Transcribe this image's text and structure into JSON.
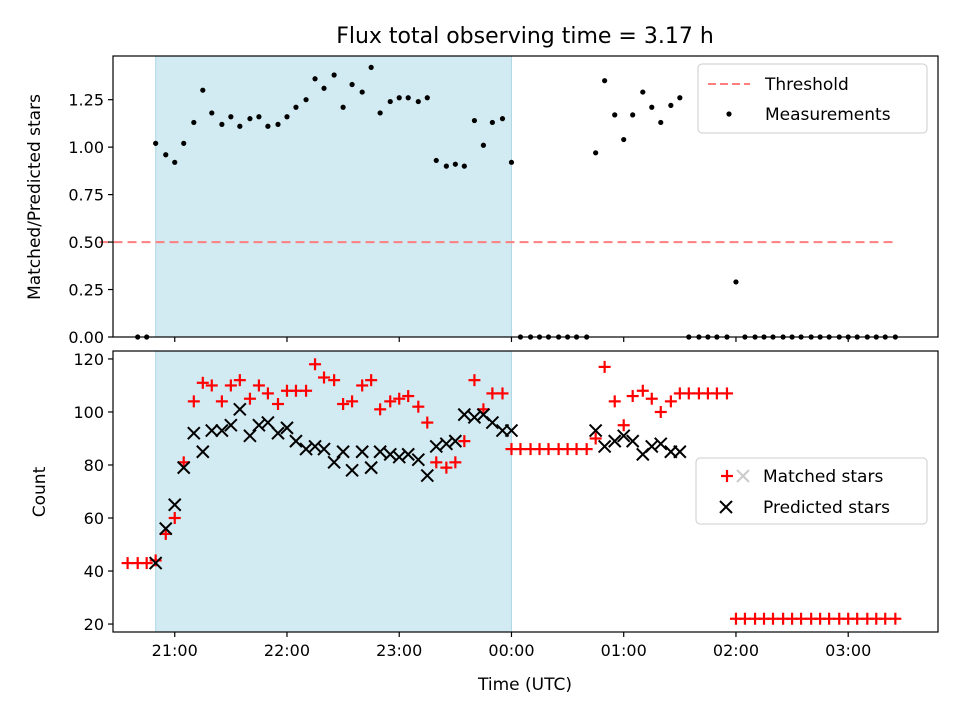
{
  "figure": {
    "title": "Flux total observing time = 3.17 h",
    "shade_color": "#add8e6"
  },
  "chart_data": [
    {
      "type": "scatter",
      "title": "Flux total observing time = 3.17 h",
      "xlabel": "",
      "ylabel": "Matched/Predicted stars",
      "x_unit": "hours since 00:00 UTC (day 1 = 0)",
      "xlim": [
        20.45,
        27.8
      ],
      "ylim": [
        0.0,
        1.48
      ],
      "yticks": [
        0.0,
        0.25,
        0.5,
        0.75,
        1.0,
        1.25
      ],
      "ytick_labels": [
        "0.00",
        "0.25",
        "0.50",
        "0.75",
        "1.00",
        "1.25"
      ],
      "xticks": [
        21,
        22,
        23,
        24,
        25,
        26,
        27
      ],
      "shaded_span": [
        20.83,
        24.0
      ],
      "legend_position": "top-right",
      "threshold": {
        "name": "Threshold",
        "y": 0.5,
        "x_range": [
          20.33,
          27.42
        ],
        "color": "#ff7f7f",
        "style": "dashed"
      },
      "series": [
        {
          "name": "Measurements",
          "color": "#000000",
          "marker": "dot",
          "points": [
            [
              20.67,
              0.0
            ],
            [
              20.75,
              0.0
            ],
            [
              20.83,
              1.02
            ],
            [
              20.92,
              0.96
            ],
            [
              21.0,
              0.92
            ],
            [
              21.08,
              1.02
            ],
            [
              21.17,
              1.13
            ],
            [
              21.25,
              1.3
            ],
            [
              21.33,
              1.18
            ],
            [
              21.42,
              1.12
            ],
            [
              21.5,
              1.16
            ],
            [
              21.58,
              1.11
            ],
            [
              21.67,
              1.15
            ],
            [
              21.75,
              1.16
            ],
            [
              21.83,
              1.11
            ],
            [
              21.92,
              1.12
            ],
            [
              22.0,
              1.16
            ],
            [
              22.08,
              1.21
            ],
            [
              22.17,
              1.25
            ],
            [
              22.25,
              1.36
            ],
            [
              22.33,
              1.31
            ],
            [
              22.42,
              1.38
            ],
            [
              22.5,
              1.21
            ],
            [
              22.58,
              1.33
            ],
            [
              22.67,
              1.29
            ],
            [
              22.75,
              1.42
            ],
            [
              22.83,
              1.18
            ],
            [
              22.92,
              1.24
            ],
            [
              23.0,
              1.26
            ],
            [
              23.08,
              1.26
            ],
            [
              23.17,
              1.24
            ],
            [
              23.25,
              1.26
            ],
            [
              23.33,
              0.93
            ],
            [
              23.42,
              0.9
            ],
            [
              23.5,
              0.91
            ],
            [
              23.58,
              0.9
            ],
            [
              23.67,
              1.14
            ],
            [
              23.75,
              1.01
            ],
            [
              23.83,
              1.13
            ],
            [
              23.92,
              1.15
            ],
            [
              24.0,
              0.92
            ],
            [
              24.08,
              0.0
            ],
            [
              24.17,
              0.0
            ],
            [
              24.25,
              0.0
            ],
            [
              24.33,
              0.0
            ],
            [
              24.42,
              0.0
            ],
            [
              24.5,
              0.0
            ],
            [
              24.58,
              0.0
            ],
            [
              24.67,
              0.0
            ],
            [
              24.75,
              0.97
            ],
            [
              24.83,
              1.35
            ],
            [
              24.92,
              1.17
            ],
            [
              25.0,
              1.04
            ],
            [
              25.08,
              1.17
            ],
            [
              25.17,
              1.29
            ],
            [
              25.25,
              1.21
            ],
            [
              25.33,
              1.13
            ],
            [
              25.42,
              1.22
            ],
            [
              25.5,
              1.26
            ],
            [
              25.58,
              0.0
            ],
            [
              25.67,
              0.0
            ],
            [
              25.75,
              0.0
            ],
            [
              25.83,
              0.0
            ],
            [
              25.92,
              0.0
            ],
            [
              26.0,
              0.29
            ],
            [
              26.08,
              0.0
            ],
            [
              26.17,
              0.0
            ],
            [
              26.25,
              0.0
            ],
            [
              26.33,
              0.0
            ],
            [
              26.42,
              0.0
            ],
            [
              26.5,
              0.0
            ],
            [
              26.58,
              0.0
            ],
            [
              26.67,
              0.0
            ],
            [
              26.75,
              0.0
            ],
            [
              26.83,
              0.0
            ],
            [
              26.92,
              0.0
            ],
            [
              27.0,
              0.0
            ],
            [
              27.08,
              0.0
            ],
            [
              27.17,
              0.0
            ],
            [
              27.25,
              0.0
            ],
            [
              27.33,
              0.0
            ],
            [
              27.42,
              0.0
            ]
          ]
        }
      ]
    },
    {
      "type": "scatter",
      "title": "",
      "xlabel": "Time (UTC)",
      "ylabel": "Count",
      "x_unit": "hours since 00:00 UTC (day 1 = 0)",
      "xlim": [
        20.45,
        27.8
      ],
      "ylim": [
        17,
        123
      ],
      "yticks": [
        20,
        40,
        60,
        80,
        100,
        120
      ],
      "ytick_labels": [
        "20",
        "40",
        "60",
        "80",
        "100",
        "120"
      ],
      "xticks": [
        21,
        22,
        23,
        24,
        25,
        26,
        27
      ],
      "xtick_labels": [
        "21:00",
        "22:00",
        "23:00",
        "00:00",
        "01:00",
        "02:00",
        "03:00"
      ],
      "shaded_span": [
        20.83,
        24.0
      ],
      "legend_position": "center-right",
      "series": [
        {
          "name": "Matched stars",
          "color": "#ff0000",
          "marker": "plus",
          "points": [
            [
              20.58,
              43
            ],
            [
              20.67,
              43
            ],
            [
              20.75,
              43
            ],
            [
              20.83,
              44
            ],
            [
              20.92,
              54
            ],
            [
              21.0,
              60
            ],
            [
              21.08,
              81
            ],
            [
              21.17,
              104
            ],
            [
              21.25,
              111
            ],
            [
              21.33,
              110
            ],
            [
              21.42,
              104
            ],
            [
              21.5,
              110
            ],
            [
              21.58,
              112
            ],
            [
              21.67,
              105
            ],
            [
              21.75,
              110
            ],
            [
              21.83,
              107
            ],
            [
              21.92,
              103
            ],
            [
              22.0,
              108
            ],
            [
              22.08,
              108
            ],
            [
              22.17,
              108
            ],
            [
              22.25,
              118
            ],
            [
              22.33,
              113
            ],
            [
              22.42,
              112
            ],
            [
              22.5,
              103
            ],
            [
              22.58,
              104
            ],
            [
              22.67,
              110
            ],
            [
              22.75,
              112
            ],
            [
              22.83,
              101
            ],
            [
              22.92,
              104
            ],
            [
              23.0,
              105
            ],
            [
              23.08,
              106
            ],
            [
              23.17,
              102
            ],
            [
              23.25,
              96
            ],
            [
              23.33,
              81
            ],
            [
              23.42,
              79
            ],
            [
              23.5,
              81
            ],
            [
              23.58,
              89
            ],
            [
              23.67,
              112
            ],
            [
              23.75,
              101
            ],
            [
              23.83,
              107
            ],
            [
              23.92,
              107
            ],
            [
              24.0,
              86
            ],
            [
              24.08,
              86
            ],
            [
              24.17,
              86
            ],
            [
              24.25,
              86
            ],
            [
              24.33,
              86
            ],
            [
              24.42,
              86
            ],
            [
              24.5,
              86
            ],
            [
              24.58,
              86
            ],
            [
              24.67,
              86
            ],
            [
              24.75,
              90
            ],
            [
              24.83,
              117
            ],
            [
              24.92,
              104
            ],
            [
              25.0,
              95
            ],
            [
              25.08,
              106
            ],
            [
              25.17,
              108
            ],
            [
              25.25,
              105
            ],
            [
              25.33,
              100
            ],
            [
              25.42,
              104
            ],
            [
              25.5,
              107
            ],
            [
              25.58,
              107
            ],
            [
              25.67,
              107
            ],
            [
              25.75,
              107
            ],
            [
              25.83,
              107
            ],
            [
              25.92,
              107
            ],
            [
              26.0,
              22
            ],
            [
              26.08,
              22
            ],
            [
              26.17,
              22
            ],
            [
              26.25,
              22
            ],
            [
              26.33,
              22
            ],
            [
              26.42,
              22
            ],
            [
              26.5,
              22
            ],
            [
              26.58,
              22
            ],
            [
              26.67,
              22
            ],
            [
              26.75,
              22
            ],
            [
              26.83,
              22
            ],
            [
              26.92,
              22
            ],
            [
              27.0,
              22
            ],
            [
              27.08,
              22
            ],
            [
              27.17,
              22
            ],
            [
              27.25,
              22
            ],
            [
              27.33,
              22
            ],
            [
              27.42,
              22
            ]
          ]
        },
        {
          "name": "Predicted stars",
          "color": "#000000",
          "marker": "x",
          "points": [
            [
              20.83,
              43
            ],
            [
              20.92,
              56
            ],
            [
              21.0,
              65
            ],
            [
              21.08,
              79
            ],
            [
              21.17,
              92
            ],
            [
              21.25,
              85
            ],
            [
              21.33,
              93
            ],
            [
              21.42,
              93
            ],
            [
              21.5,
              95
            ],
            [
              21.58,
              101
            ],
            [
              21.67,
              91
            ],
            [
              21.75,
              95
            ],
            [
              21.83,
              96
            ],
            [
              21.92,
              92
            ],
            [
              22.0,
              94
            ],
            [
              22.08,
              89
            ],
            [
              22.17,
              86
            ],
            [
              22.25,
              87
            ],
            [
              22.33,
              86
            ],
            [
              22.42,
              81
            ],
            [
              22.5,
              85
            ],
            [
              22.58,
              78
            ],
            [
              22.67,
              85
            ],
            [
              22.75,
              79
            ],
            [
              22.83,
              85
            ],
            [
              22.92,
              84
            ],
            [
              23.0,
              83
            ],
            [
              23.08,
              84
            ],
            [
              23.17,
              82
            ],
            [
              23.25,
              76
            ],
            [
              23.33,
              87
            ],
            [
              23.42,
              88
            ],
            [
              23.5,
              89
            ],
            [
              23.58,
              99
            ],
            [
              23.67,
              98
            ],
            [
              23.75,
              99
            ],
            [
              23.83,
              96
            ],
            [
              23.92,
              93
            ],
            [
              24.0,
              93
            ],
            [
              24.75,
              93
            ],
            [
              24.83,
              87
            ],
            [
              24.92,
              89
            ],
            [
              25.0,
              91
            ],
            [
              25.08,
              89
            ],
            [
              25.17,
              84
            ],
            [
              25.25,
              87
            ],
            [
              25.33,
              88
            ],
            [
              25.42,
              85
            ],
            [
              25.5,
              85
            ]
          ]
        }
      ]
    }
  ]
}
